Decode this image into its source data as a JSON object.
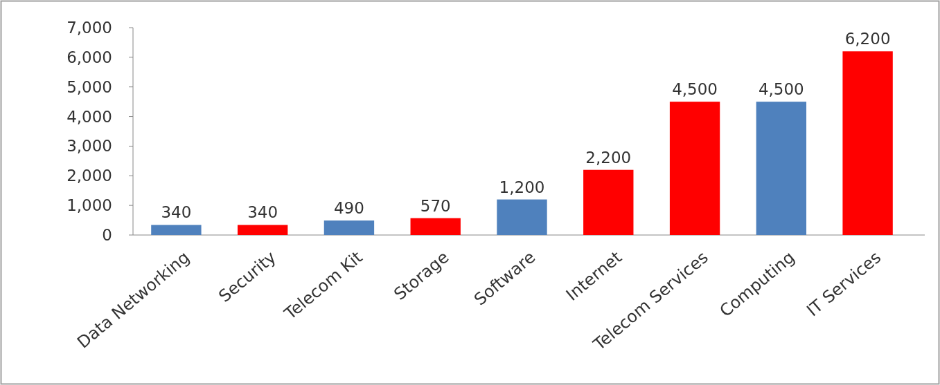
{
  "chart_data": {
    "type": "bar",
    "categories": [
      "Data Networking",
      "Security",
      "Telecom Kit",
      "Storage",
      "Software",
      "Internet",
      "Telecom Services",
      "Computing",
      "IT Services"
    ],
    "values": [
      340,
      340,
      490,
      570,
      1200,
      2200,
      4500,
      4500,
      6200
    ],
    "colors": [
      "#4f81bd",
      "#ff0000",
      "#4f81bd",
      "#ff0000",
      "#4f81bd",
      "#ff0000",
      "#ff0000",
      "#4f81bd",
      "#ff0000"
    ],
    "ylim": [
      0,
      7000
    ],
    "yticks": [
      {
        "value": 0,
        "label": "0"
      },
      {
        "value": 1000,
        "label": "1,000"
      },
      {
        "value": 2000,
        "label": "2,000"
      },
      {
        "value": 3000,
        "label": "3,000"
      },
      {
        "value": 4000,
        "label": "4,000"
      },
      {
        "value": 5000,
        "label": "5,000"
      },
      {
        "value": 6000,
        "label": "6,000"
      },
      {
        "value": 7000,
        "label": "7,000"
      }
    ],
    "value_labels": [
      "340",
      "340",
      "490",
      "570",
      "1,200",
      "2,200",
      "4,500",
      "4,500",
      "6,200"
    ],
    "grid": false
  }
}
